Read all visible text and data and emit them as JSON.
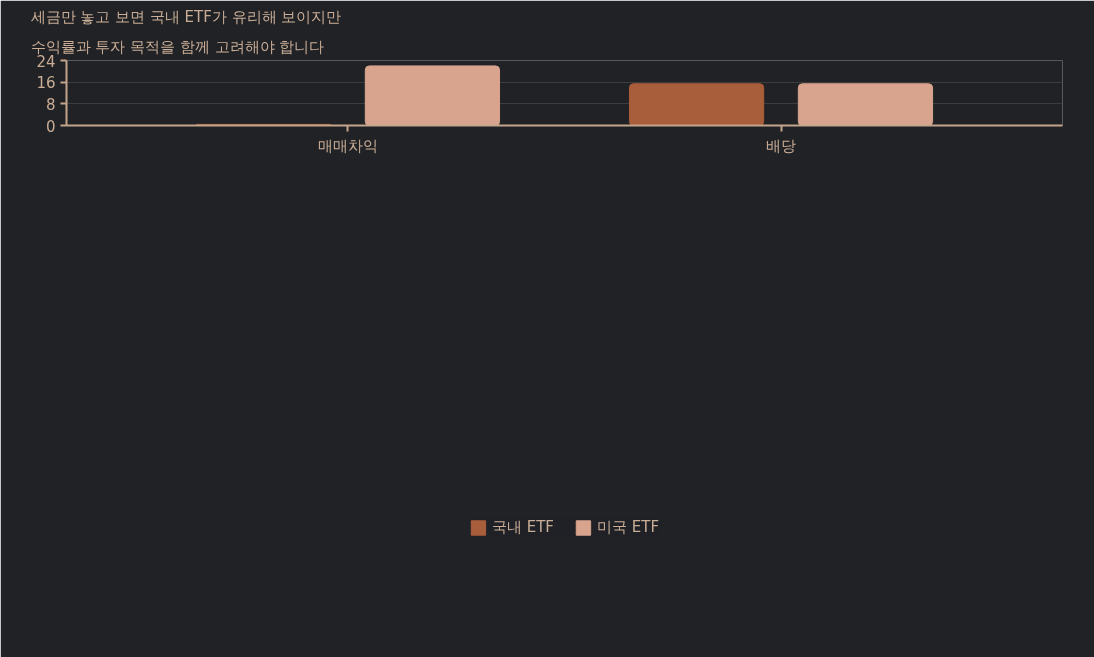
{
  "chart_data": {
    "type": "bar",
    "title": "세금만 놓고 보면 국내 ETF가 유리해 보이지만",
    "subtitle": "수익률과 투자 목적을 함께 고려해야 합니다",
    "categories": [
      "매매차익",
      "배당"
    ],
    "series": [
      {
        "name": "국내 ETF",
        "color": "#a95e3b",
        "values": [
          0.4,
          15.4
        ]
      },
      {
        "name": "미국 ETF",
        "color": "#d8a48e",
        "values": [
          22,
          15.4
        ]
      }
    ],
    "ylim": [
      0,
      24
    ],
    "yticks": [
      0,
      8,
      16,
      24
    ],
    "grid": "y",
    "legend": "bottom"
  }
}
